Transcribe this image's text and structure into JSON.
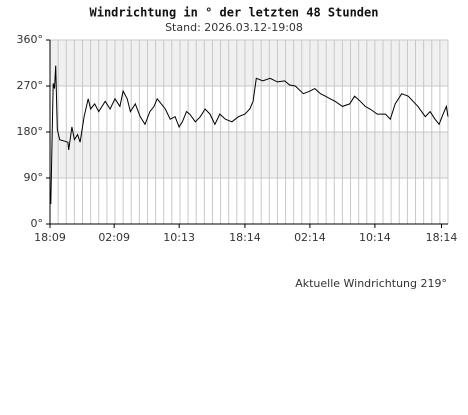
{
  "chart_data": {
    "type": "line",
    "title": "Windrichtung in ° der letzten 48 Stunden",
    "subtitle": "Stand: 2026.03.12-19:08",
    "annotation": "Aktuelle Windrichtung 219°",
    "xlim": [
      0,
      49
    ],
    "xticks": [
      {
        "value": 0,
        "label": "18:09"
      },
      {
        "value": 7.9,
        "label": "02:09"
      },
      {
        "value": 15.9,
        "label": "10:13"
      },
      {
        "value": 24,
        "label": "18:14"
      },
      {
        "value": 32,
        "label": "02:14"
      },
      {
        "value": 40,
        "label": "10:14"
      },
      {
        "value": 48.2,
        "label": "18:14"
      }
    ],
    "xgrid_step": 1,
    "ylim": [
      0,
      360
    ],
    "yticks": [
      {
        "value": 0,
        "label": "0°"
      },
      {
        "value": 90,
        "label": "90°"
      },
      {
        "value": 180,
        "label": "180°"
      },
      {
        "value": 270,
        "label": "270°"
      },
      {
        "value": 360,
        "label": "360°"
      }
    ],
    "bands": [
      {
        "from": 90,
        "to": 180
      },
      {
        "from": 270,
        "to": 360
      }
    ],
    "band_color": "#f0f0f0",
    "series": [
      {
        "color": "#000000",
        "x": [
          0,
          0.1,
          0.4,
          0.55,
          0.7,
          0.9,
          1.2,
          2.2,
          2.3,
          2.7,
          3.0,
          3.4,
          3.7,
          4.2,
          4.7,
          5.0,
          5.5,
          6.0,
          6.8,
          7.4,
          8,
          8.6,
          9,
          9.5,
          9.9,
          10.5,
          11.1,
          11.7,
          12.3,
          12.8,
          13.2,
          13.7,
          14.2,
          14.8,
          15.4,
          15.9,
          16.3,
          16.8,
          17.2,
          17.9,
          18.5,
          19.1,
          19.7,
          20.3,
          20.9,
          21.6,
          22.4,
          23.2,
          24,
          24.6,
          25,
          25.4,
          26.2,
          27.1,
          28,
          28.9,
          29.5,
          30.2,
          31.2,
          32,
          32.6,
          33.3,
          33.9,
          34.5,
          35.1,
          36,
          36.9,
          37.5,
          38.2,
          38.8,
          39.4,
          40.3,
          41.3,
          41.9,
          42.5,
          43.3,
          44.1,
          44.7,
          45.3,
          46.2,
          46.8,
          47.4,
          47.9,
          48.4,
          48.8,
          49
        ],
        "values": [
          40,
          40,
          275,
          265,
          310,
          185,
          165,
          160,
          145,
          190,
          165,
          175,
          160,
          210,
          245,
          225,
          235,
          220,
          240,
          225,
          245,
          230,
          260,
          245,
          220,
          235,
          210,
          195,
          220,
          230,
          245,
          235,
          225,
          205,
          210,
          190,
          200,
          220,
          215,
          200,
          210,
          225,
          215,
          195,
          215,
          205,
          200,
          210,
          215,
          225,
          240,
          285,
          280,
          285,
          278,
          280,
          272,
          270,
          255,
          260,
          265,
          255,
          250,
          245,
          240,
          230,
          235,
          250,
          240,
          230,
          225,
          215,
          215,
          205,
          235,
          255,
          250,
          240,
          230,
          210,
          220,
          205,
          195,
          215,
          230,
          210
        ]
      }
    ]
  }
}
